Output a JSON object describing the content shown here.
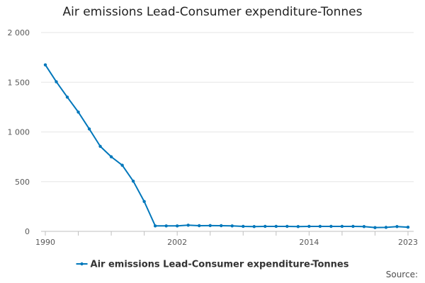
{
  "colors": {
    "series": "#0077bb",
    "grid": "#e6e6e6",
    "axis": "#bfbfbf"
  },
  "source": "Source:",
  "chart_data": {
    "type": "line",
    "title": "Air emissions Lead-Consumer expenditure-Tonnes",
    "xlabel": "",
    "ylabel": "",
    "xlim": [
      1990,
      2023
    ],
    "ylim": [
      0,
      2000
    ],
    "yticks": [
      {
        "value": 0,
        "label": "0"
      },
      {
        "value": 500,
        "label": "500"
      },
      {
        "value": 1000,
        "label": "1 000"
      },
      {
        "value": 1500,
        "label": "1 500"
      },
      {
        "value": 2000,
        "label": "2 000"
      }
    ],
    "xtick_labels": [
      {
        "value": 1990,
        "label": "1990"
      },
      {
        "value": 2002,
        "label": "2002"
      },
      {
        "value": 2014,
        "label": "2014"
      },
      {
        "value": 2023,
        "label": "2023"
      }
    ],
    "xtick_marks": [
      1990,
      1993,
      1996,
      1999,
      2002,
      2005,
      2008,
      2011,
      2014,
      2017,
      2020,
      2023
    ],
    "grid": true,
    "legend_position": "bottom",
    "x": [
      1990,
      1991,
      1992,
      1993,
      1994,
      1995,
      1996,
      1997,
      1998,
      1999,
      2000,
      2001,
      2002,
      2003,
      2004,
      2005,
      2006,
      2007,
      2008,
      2009,
      2010,
      2011,
      2012,
      2013,
      2014,
      2015,
      2016,
      2017,
      2018,
      2019,
      2020,
      2021,
      2022,
      2023
    ],
    "series": [
      {
        "name": "Air emissions Lead-Consumer expenditure-Tonnes",
        "values": [
          1675,
          1505,
          1350,
          1200,
          1030,
          855,
          750,
          665,
          505,
          300,
          55,
          55,
          55,
          62,
          57,
          58,
          57,
          55,
          50,
          48,
          50,
          50,
          50,
          48,
          50,
          50,
          50,
          50,
          50,
          48,
          38,
          40,
          48,
          42
        ]
      }
    ]
  }
}
